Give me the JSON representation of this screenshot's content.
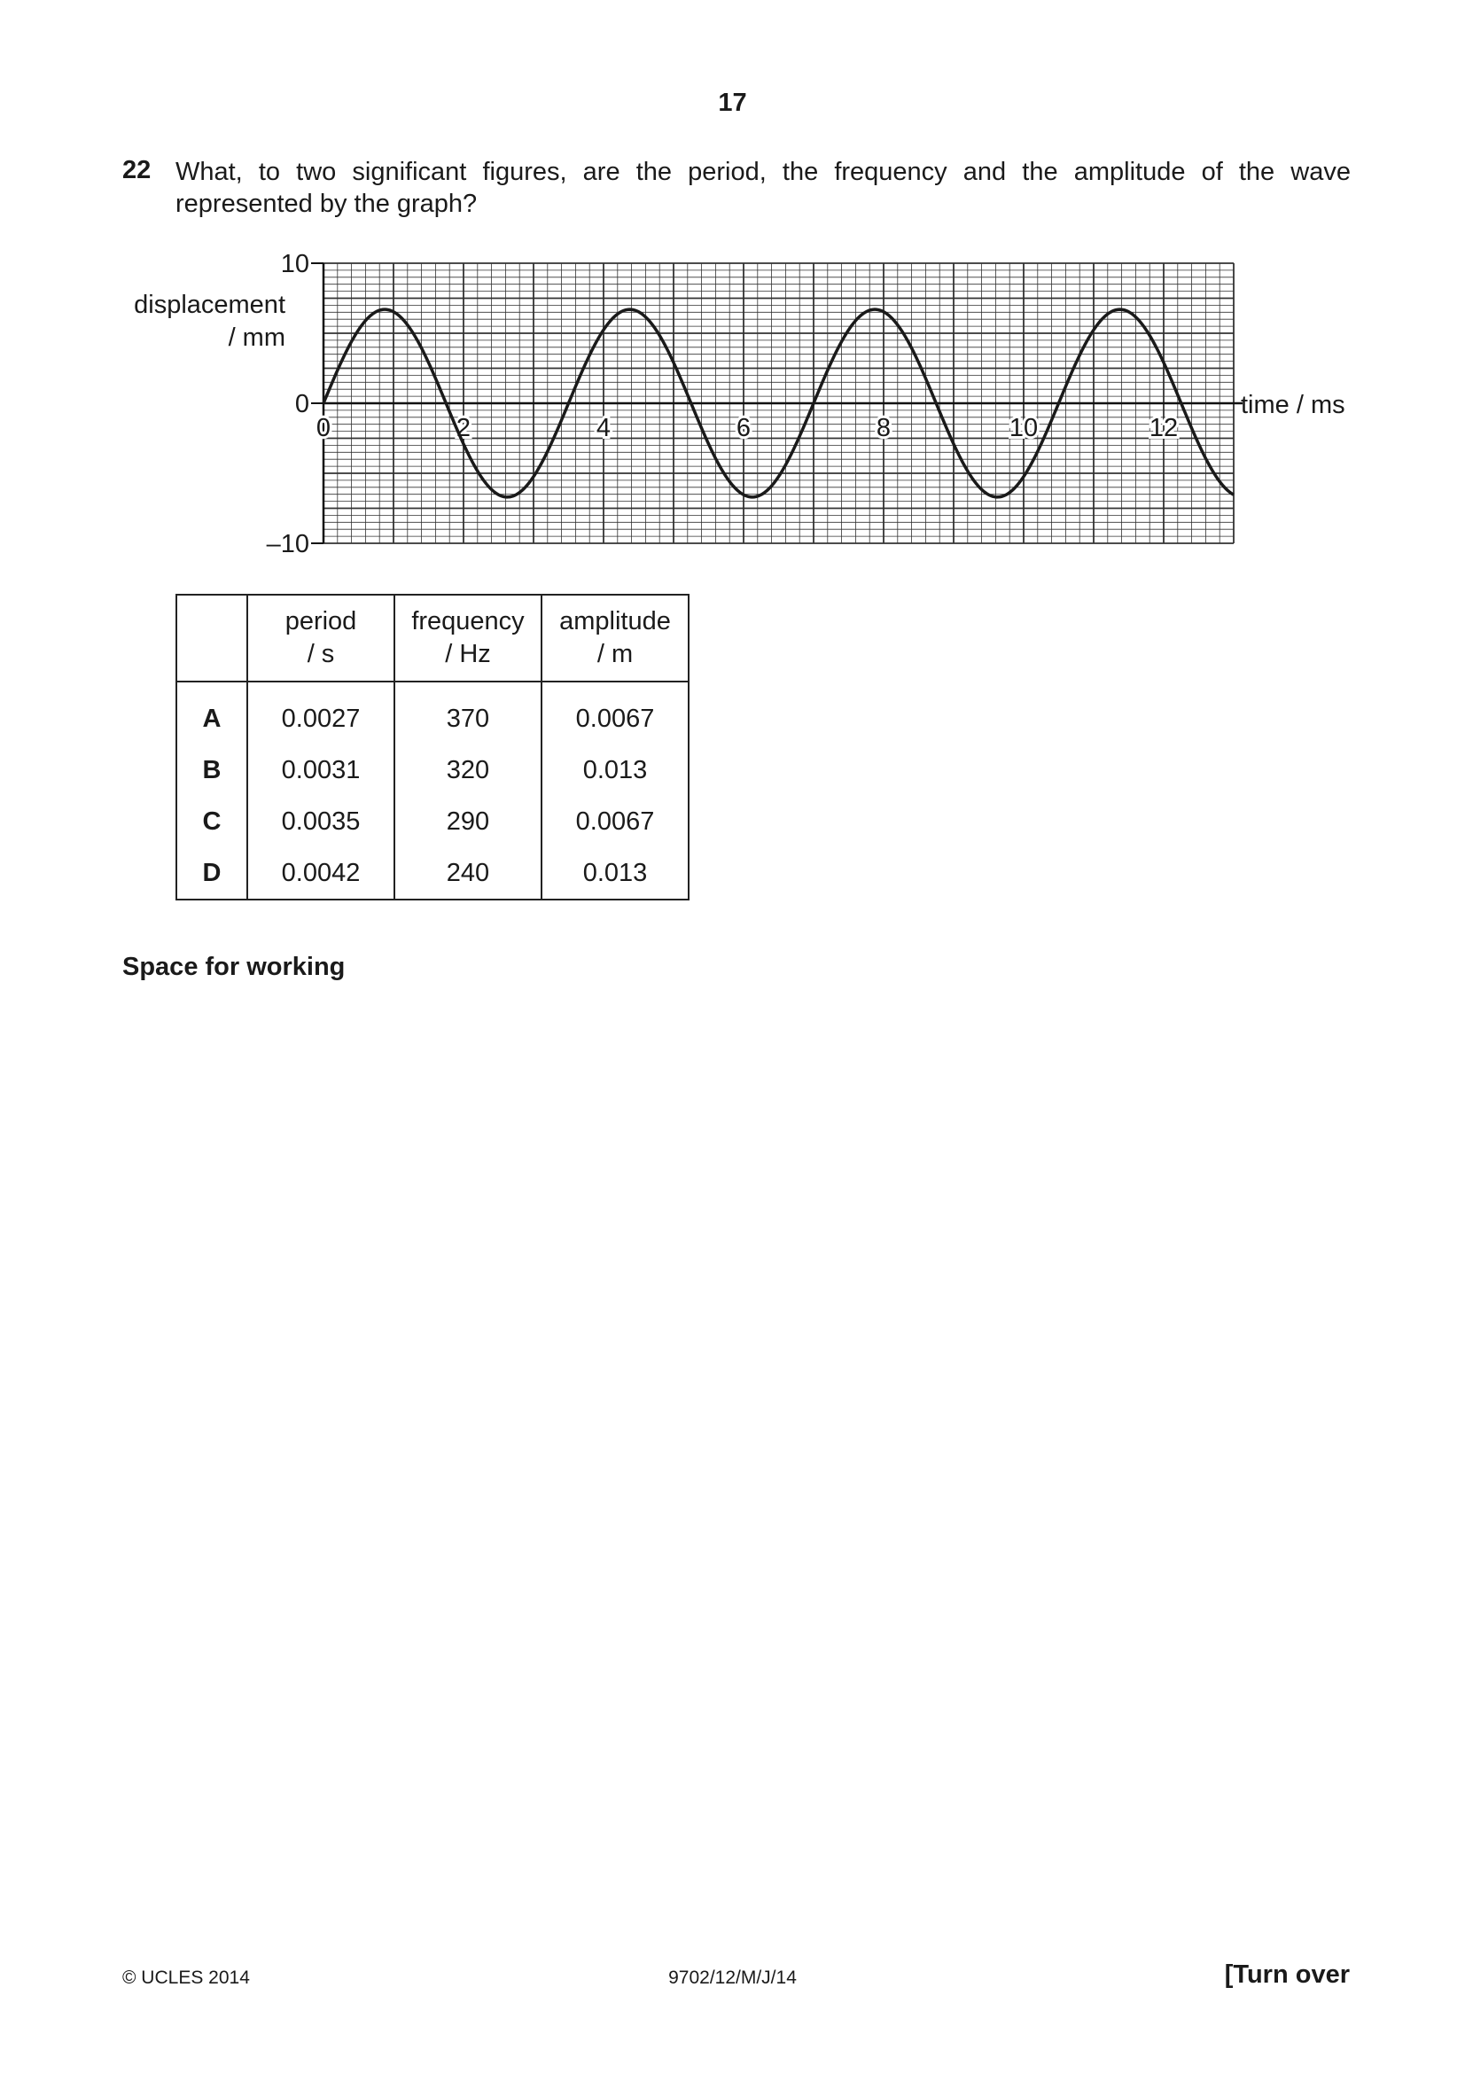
{
  "page_number": "17",
  "question": {
    "number": "22",
    "text": "What, to two significant figures, are the period, the frequency and the amplitude of the wave represented by the graph?"
  },
  "chart_data": {
    "type": "line",
    "title": "",
    "ylabel_line1": "displacement",
    "ylabel_line2": "/ mm",
    "xlabel": "time / ms",
    "xlim": [
      0,
      13
    ],
    "ylim": [
      -10,
      10
    ],
    "x_ticks": [
      "0",
      "2",
      "4",
      "6",
      "8",
      "10",
      "12"
    ],
    "y_ticks": [
      "10",
      "0",
      "–10"
    ],
    "grid": true,
    "series": [
      {
        "name": "wave",
        "function": "sine",
        "amplitude": 6.7,
        "period": 3.5,
        "phase": 0
      }
    ]
  },
  "table": {
    "headers": [
      {
        "line1": "period",
        "line2": "/ s"
      },
      {
        "line1": "frequency",
        "line2": "/ Hz"
      },
      {
        "line1": "amplitude",
        "line2": "/ m"
      }
    ],
    "rows": [
      {
        "letter": "A",
        "period": "0.0027",
        "frequency": "370",
        "amplitude": "0.0067"
      },
      {
        "letter": "B",
        "period": "0.0031",
        "frequency": "320",
        "amplitude": "0.013"
      },
      {
        "letter": "C",
        "period": "0.0035",
        "frequency": "290",
        "amplitude": "0.0067"
      },
      {
        "letter": "D",
        "period": "0.0042",
        "frequency": "240",
        "amplitude": "0.013"
      }
    ]
  },
  "working_label": "Space for working",
  "footer": {
    "copyright": "© UCLES 2014",
    "code": "9702/12/M/J/14",
    "turn_over": "[Turn over"
  }
}
